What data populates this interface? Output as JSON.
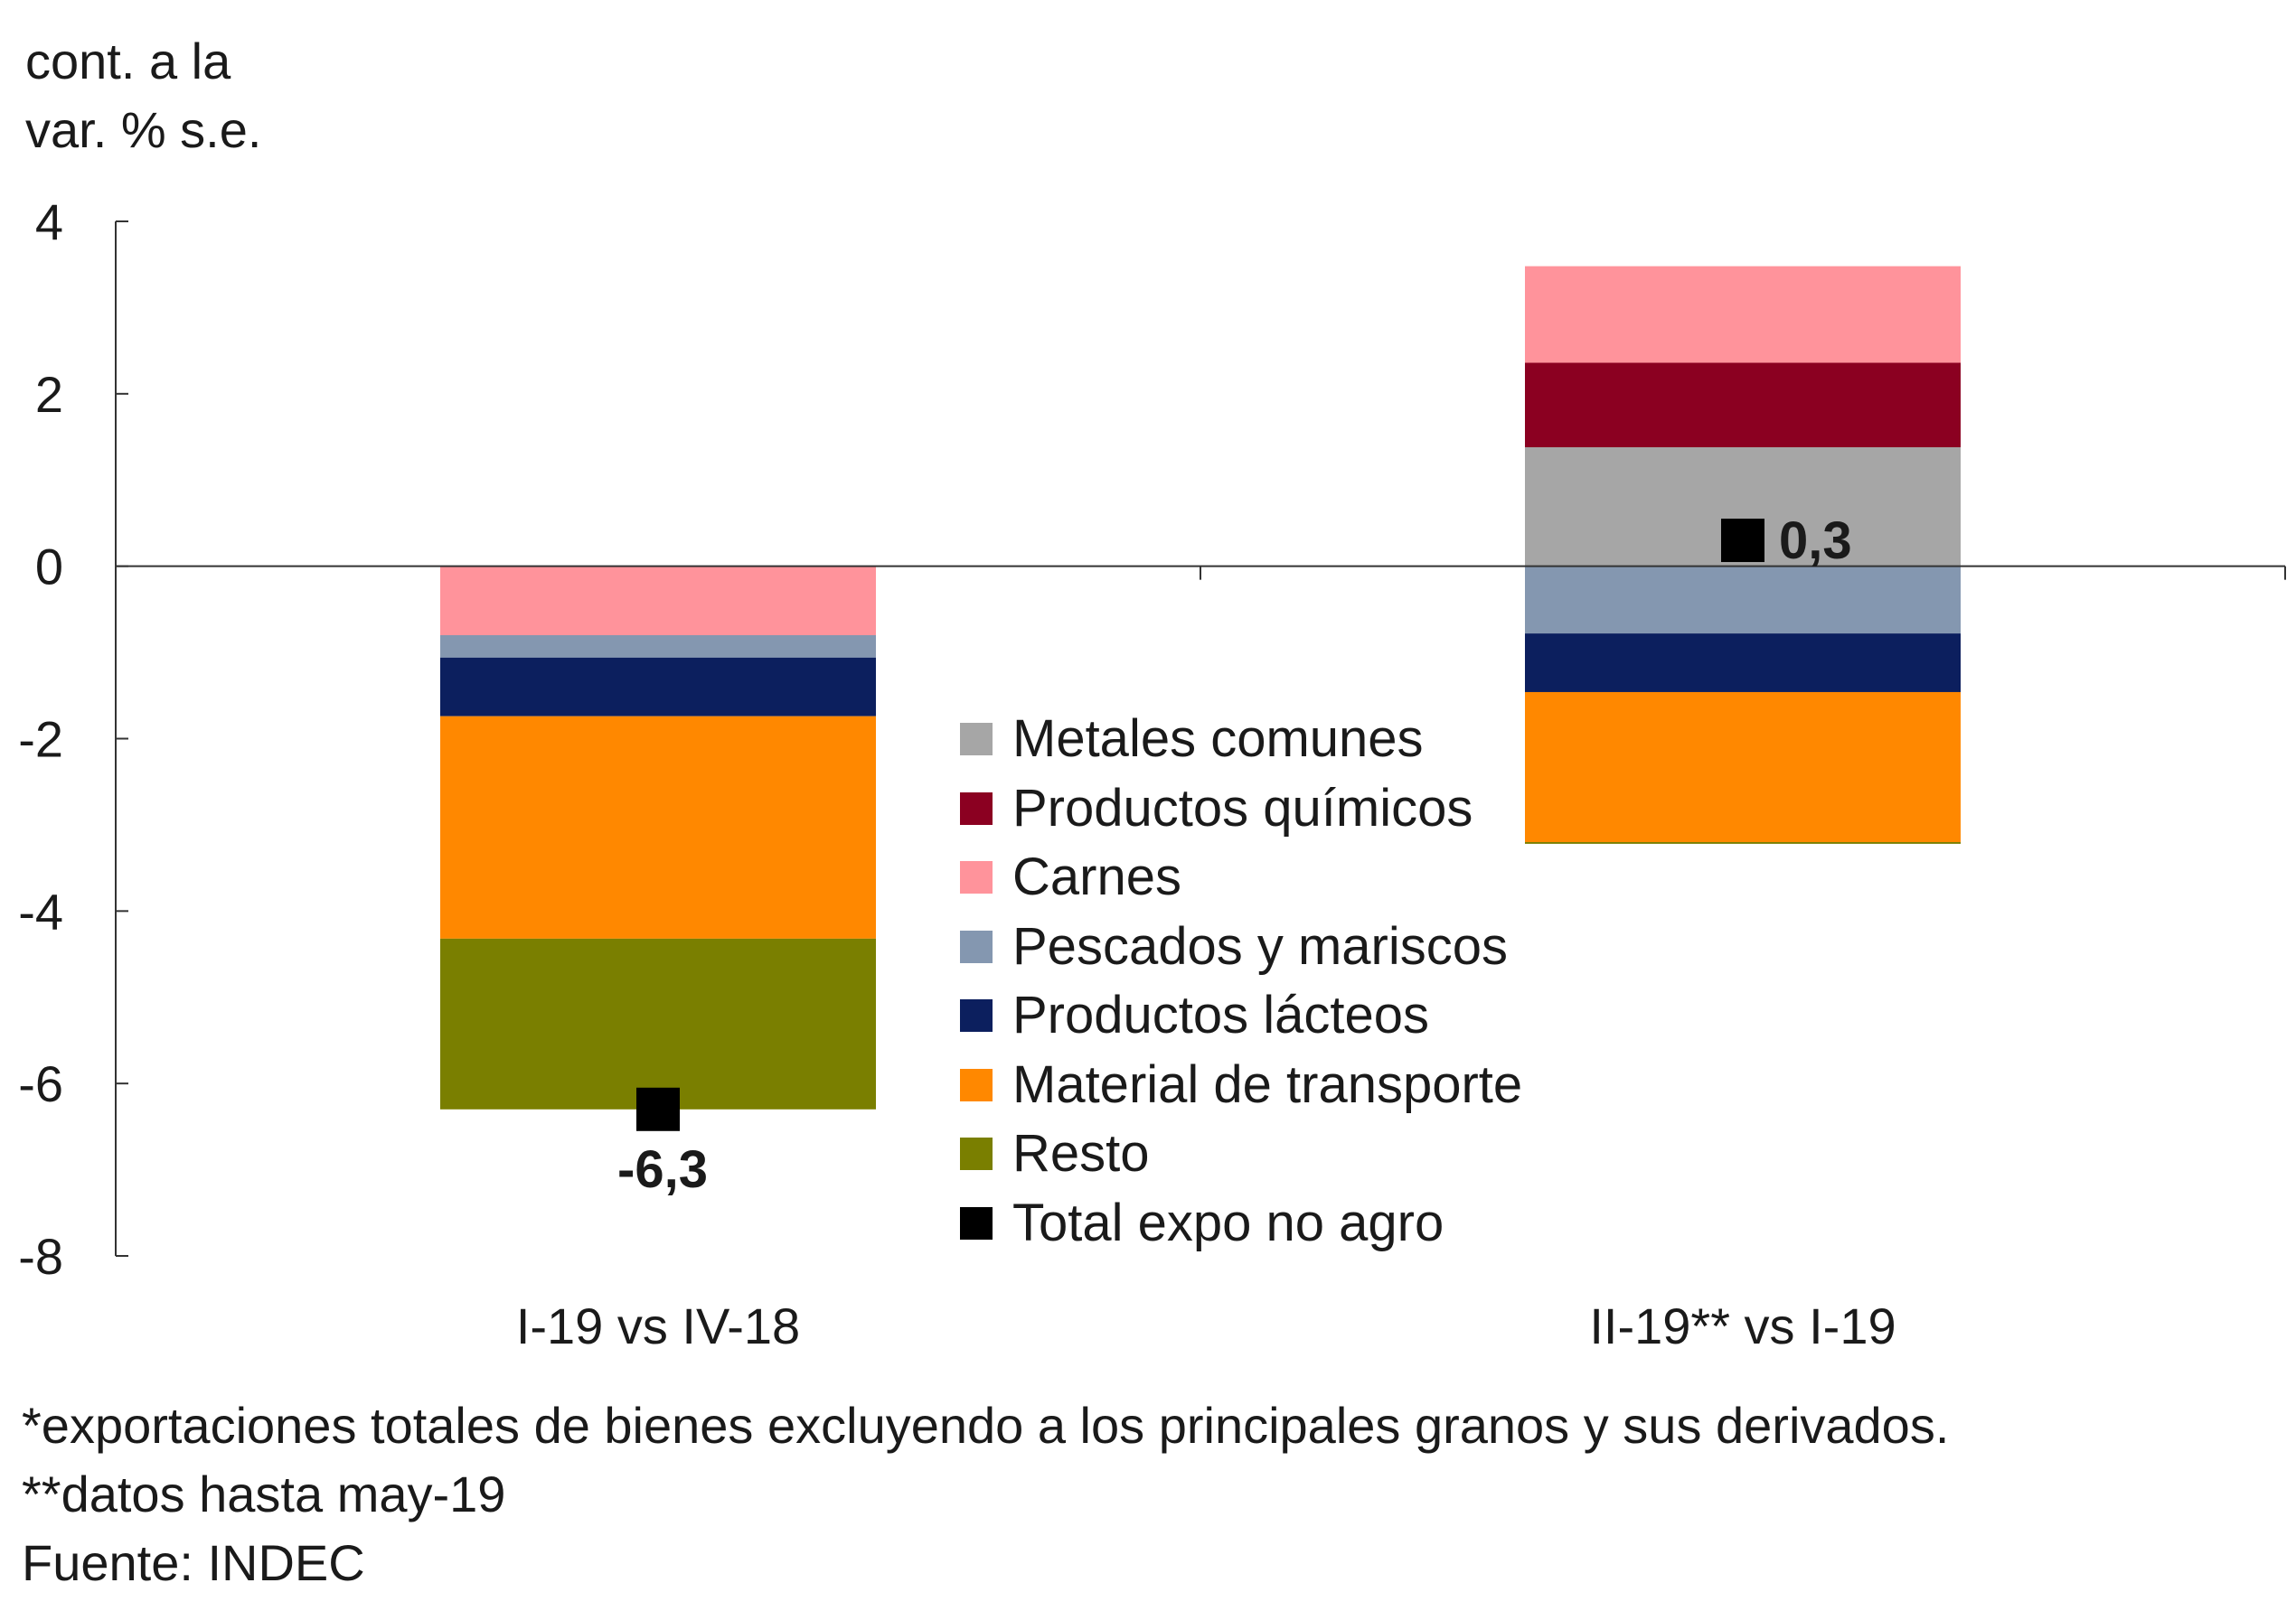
{
  "chart_data": {
    "type": "bar",
    "stacked": true,
    "ylabel_lines": [
      "cont. a la",
      "var. % s.e."
    ],
    "ylim": [
      -8,
      4
    ],
    "yticks": [
      4,
      2,
      0,
      -2,
      -4,
      -6,
      -8
    ],
    "ytick_labels": [
      "4",
      "2",
      "0",
      "-2",
      "-4",
      "-6",
      "-8"
    ],
    "categories": [
      "I-19 vs IV-18",
      "II-19** vs I-19"
    ],
    "series": [
      {
        "name": "Metales comunes",
        "color": "#a6a6a6",
        "values": [
          0,
          1.38
        ]
      },
      {
        "name": "Productos químicos",
        "color": "#8b0021",
        "values": [
          0,
          0.98
        ]
      },
      {
        "name": "Carnes",
        "color": "#ff939b",
        "values": [
          -0.8,
          1.12
        ]
      },
      {
        "name": "Pescados y mariscos",
        "color": "#8497b0",
        "values": [
          -0.26,
          -0.78
        ]
      },
      {
        "name": "Productos lácteos",
        "color": "#0c1f5e",
        "values": [
          -0.68,
          -0.68
        ]
      },
      {
        "name": "Material de transporte",
        "color": "#ff8800",
        "values": [
          -2.58,
          -1.74
        ]
      },
      {
        "name": "Resto",
        "color": "#7a7f00",
        "values": [
          -1.98,
          -0.02
        ]
      }
    ],
    "total": {
      "name": "Total expo no agro",
      "color": "#000000",
      "values": [
        -6.3,
        0.3
      ],
      "labels": [
        "-6,3",
        "0,3"
      ]
    },
    "legend_position": "center",
    "grid": false
  },
  "notes": [
    "*exportaciones totales de bienes excluyendo a los principales granos y sus derivados.",
    "**datos hasta may-19",
    "Fuente: INDEC"
  ]
}
